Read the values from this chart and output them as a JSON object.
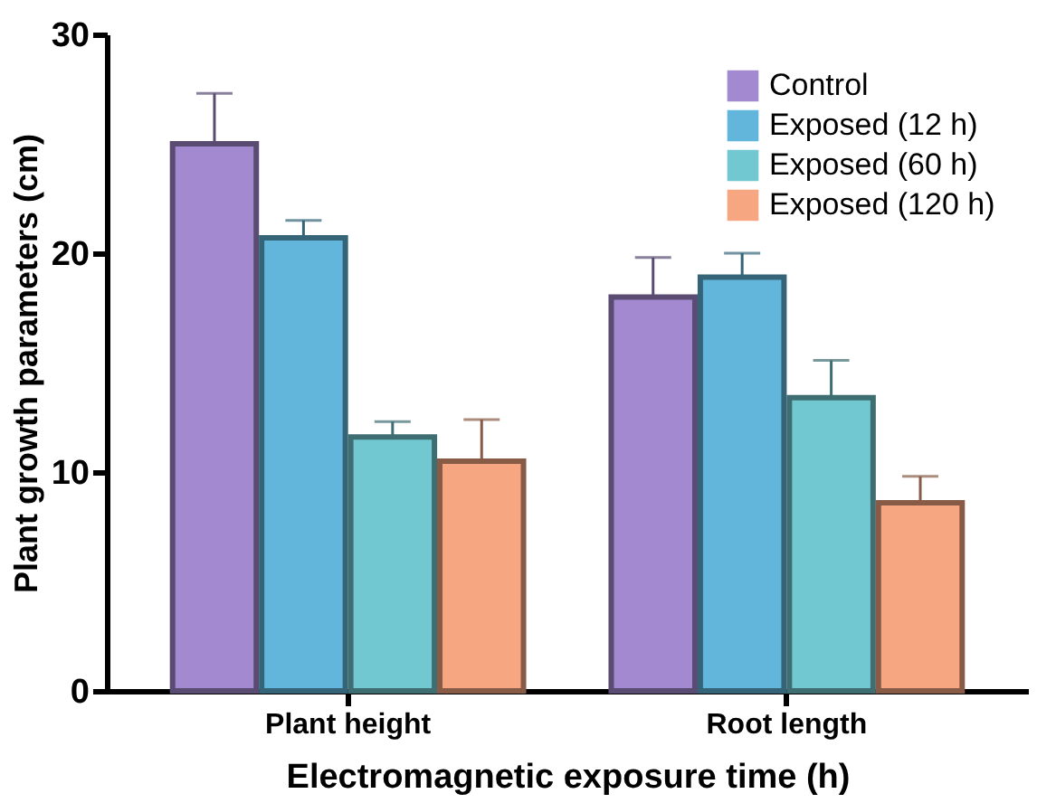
{
  "chart_data": {
    "type": "bar",
    "xlabel": "Electromagnetic exposure time (h)",
    "ylabel": "Plant growth parameters (cm)",
    "categories": [
      "Plant height",
      "Root length"
    ],
    "series": [
      {
        "name": "Control",
        "color": "#a38ad0",
        "values": [
          25.0,
          18.0
        ],
        "errors": [
          [
            25.0,
            27.3
          ],
          [
            18.0,
            19.8
          ]
        ]
      },
      {
        "name": "Exposed (12 h)",
        "color": "#62b6dc",
        "values": [
          20.7,
          18.9
        ],
        "errors": [
          [
            20.7,
            21.5
          ],
          [
            18.9,
            20.0
          ]
        ]
      },
      {
        "name": "Exposed (60 h)",
        "color": "#72c8d0",
        "values": [
          11.6,
          13.4
        ],
        "errors": [
          [
            11.6,
            12.3
          ],
          [
            13.4,
            15.1
          ]
        ]
      },
      {
        "name": "Exposed (120 h)",
        "color": "#f6a680",
        "values": [
          10.5,
          8.6
        ],
        "errors": [
          [
            10.5,
            12.4
          ],
          [
            8.6,
            9.8
          ]
        ]
      }
    ],
    "ylim": [
      0,
      30
    ],
    "yticks": [
      0,
      10,
      20,
      30
    ],
    "grid": false,
    "legend": "top right"
  }
}
